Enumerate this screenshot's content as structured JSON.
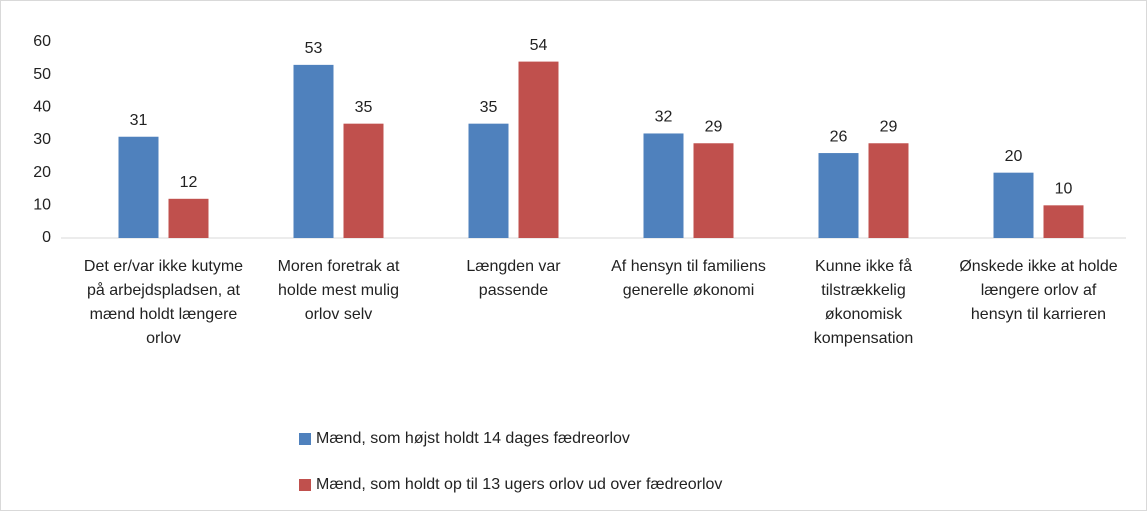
{
  "chart_data": {
    "type": "bar",
    "categories": [
      "Det er/var ikke kutyme på arbejdspladsen, at mænd holdt længere orlov",
      "Moren foretrak at holde mest mulig orlov selv",
      "Længden var passende",
      "Af hensyn til familiens generelle økonomi",
      "Kunne ikke få tilstrækkelig økonomisk kompensation",
      "Ønskede ikke at holde længere orlov af hensyn til karrieren"
    ],
    "series": [
      {
        "name": "Mænd, som højst holdt 14 dages fædreorlov",
        "color": "#4f81bd",
        "values": [
          31,
          53,
          35,
          32,
          26,
          20
        ]
      },
      {
        "name": "Mænd, som holdt op til 13 ugers orlov ud over fædreorlov",
        "color": "#c0504d",
        "values": [
          12,
          35,
          54,
          29,
          29,
          10
        ]
      }
    ],
    "ylim": [
      0,
      60
    ],
    "yticks": [
      0,
      10,
      20,
      30,
      40,
      50,
      60
    ],
    "grid": false
  }
}
